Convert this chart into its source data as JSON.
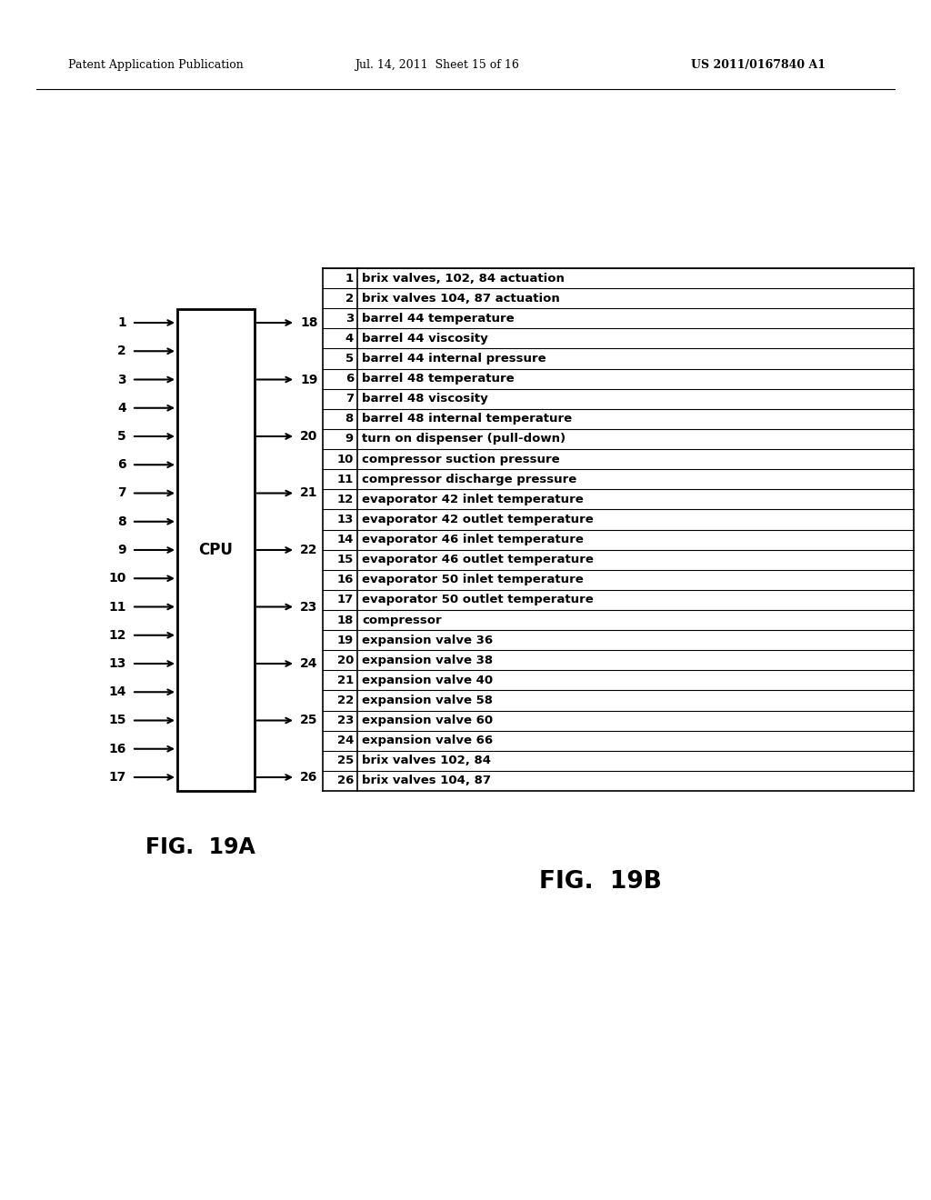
{
  "header_left": "Patent Application Publication",
  "header_mid": "Jul. 14, 2011  Sheet 15 of 16",
  "header_right": "US 2011/0167840 A1",
  "fig_a_label": "FIG.  19A",
  "fig_b_label": "FIG.  19B",
  "cpu_label": "CPU",
  "inputs": [
    1,
    2,
    3,
    4,
    5,
    6,
    7,
    8,
    9,
    10,
    11,
    12,
    13,
    14,
    15,
    16,
    17
  ],
  "outputs": [
    18,
    19,
    20,
    21,
    22,
    23,
    24,
    25,
    26
  ],
  "output_positions": [
    1,
    3,
    5,
    7,
    9,
    11,
    13,
    15,
    17
  ],
  "table_data": [
    [
      "1",
      "brix valves, 102, 84 actuation"
    ],
    [
      "2",
      "brix valves 104, 87 actuation"
    ],
    [
      "3",
      "barrel 44 temperature"
    ],
    [
      "4",
      "barrel 44 viscosity"
    ],
    [
      "5",
      "barrel 44 internal pressure"
    ],
    [
      "6",
      "barrel 48 temperature"
    ],
    [
      "7",
      "barrel 48 viscosity"
    ],
    [
      "8",
      "barrel 48 internal temperature"
    ],
    [
      "9",
      "turn on dispenser (pull-down)"
    ],
    [
      "10",
      "compressor suction pressure"
    ],
    [
      "11",
      "compressor discharge pressure"
    ],
    [
      "12",
      "evaporator 42 inlet temperature"
    ],
    [
      "13",
      "evaporator 42 outlet temperature"
    ],
    [
      "14",
      "evaporator 46 inlet temperature"
    ],
    [
      "15",
      "evaporator 46 outlet temperature"
    ],
    [
      "16",
      "evaporator 50 inlet temperature"
    ],
    [
      "17",
      "evaporator 50 outlet temperature"
    ],
    [
      "18",
      "compressor"
    ],
    [
      "19",
      "expansion valve 36"
    ],
    [
      "20",
      "expansion valve 38"
    ],
    [
      "21",
      "expansion valve 40"
    ],
    [
      "22",
      "expansion valve 58"
    ],
    [
      "23",
      "expansion valve 60"
    ],
    [
      "24",
      "expansion valve 66"
    ],
    [
      "25",
      "brix valves 102, 84"
    ],
    [
      "26",
      "brix valves 104, 87"
    ]
  ],
  "bg_color": "#ffffff",
  "text_color": "#000000"
}
